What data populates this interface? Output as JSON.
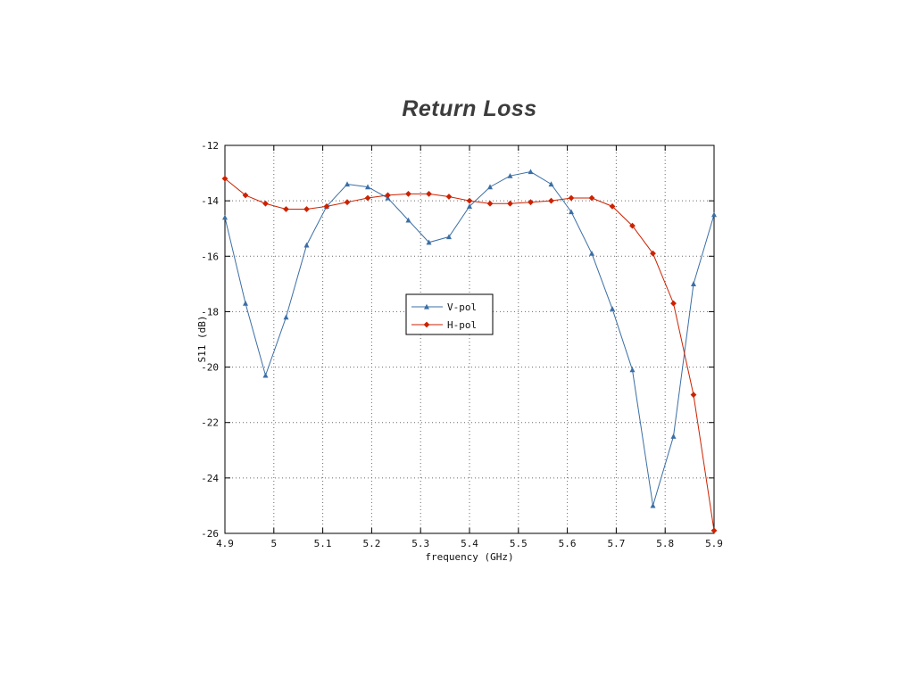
{
  "figure": {
    "title": "Return Loss",
    "xlabel": "frequency (GHz)",
    "ylabel": "S11 (dB)"
  },
  "chart_data": {
    "type": "line",
    "title": "Return Loss",
    "xlabel": "frequency (GHz)",
    "ylabel": "S11 (dB)",
    "xlim": [
      4.9,
      5.9
    ],
    "ylim": [
      -26,
      -12
    ],
    "xticks": [
      4.9,
      5.0,
      5.1,
      5.2,
      5.3,
      5.4,
      5.5,
      5.6,
      5.7,
      5.8,
      5.9
    ],
    "xtick_labels": [
      "4.9",
      "5",
      "5.1",
      "5.2",
      "5.3",
      "5.4",
      "5.5",
      "5.6",
      "5.7",
      "5.8",
      "5.9"
    ],
    "yticks": [
      -26,
      -24,
      -22,
      -20,
      -18,
      -16,
      -14,
      -12
    ],
    "grid": true,
    "legend_position": "center",
    "x": [
      4.9,
      4.942,
      4.983,
      5.025,
      5.067,
      5.108,
      5.15,
      5.192,
      5.233,
      5.275,
      5.317,
      5.358,
      5.4,
      5.442,
      5.483,
      5.525,
      5.567,
      5.608,
      5.65,
      5.692,
      5.733,
      5.775,
      5.817,
      5.858,
      5.9
    ],
    "series": [
      {
        "name": "V-pol",
        "color": "#3b6ea5",
        "marker": "triangle",
        "values": [
          -14.6,
          -17.7,
          -20.3,
          -18.2,
          -15.6,
          -14.2,
          -13.4,
          -13.5,
          -13.9,
          -14.7,
          -15.5,
          -15.3,
          -14.2,
          -13.5,
          -13.1,
          -12.95,
          -13.4,
          -14.4,
          -15.9,
          -17.9,
          -20.1,
          -25.0,
          -22.5,
          -17.0,
          -14.5
        ]
      },
      {
        "name": "H-pol",
        "color": "#cc2200",
        "marker": "diamond",
        "values": [
          -13.2,
          -13.8,
          -14.1,
          -14.3,
          -14.3,
          -14.2,
          -14.05,
          -13.9,
          -13.8,
          -13.75,
          -13.75,
          -13.85,
          -14.0,
          -14.1,
          -14.1,
          -14.05,
          -14.0,
          -13.9,
          -13.9,
          -14.2,
          -14.9,
          -15.9,
          -17.7,
          -21.0,
          -25.9
        ]
      }
    ]
  }
}
